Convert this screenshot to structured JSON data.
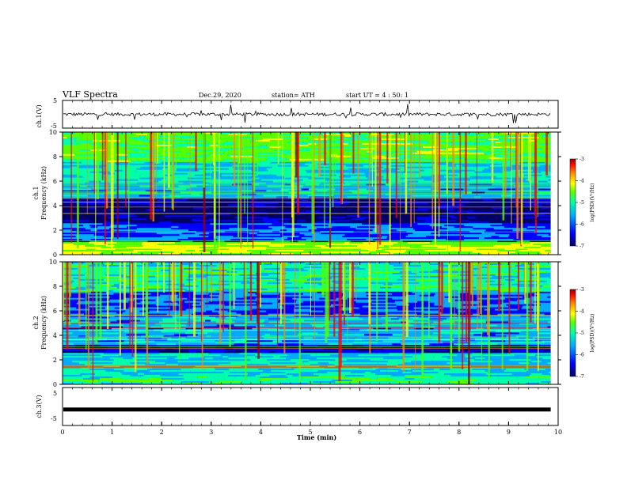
{
  "header": {
    "title": "VLF Spectra",
    "date": "Dec.29, 2020",
    "station": "station= ATH",
    "start": "start UT =  4 : 50: 1"
  },
  "chart_data": [
    {
      "type": "line",
      "name": "ch1-waveform",
      "ylabel": "ch.1(V)",
      "ylim": [
        -5,
        5
      ],
      "yticks": [
        "5",
        "-5"
      ],
      "xlim": [
        0,
        10
      ],
      "baseline_v": 0,
      "data_end_min": 9.85
    },
    {
      "type": "heatmap",
      "name": "ch1-spectrogram",
      "ylabel": "ch.1\nFrequency (kHz)",
      "ylim": [
        0,
        10
      ],
      "yticks": [
        "0",
        "2",
        "4",
        "6",
        "8",
        "10"
      ],
      "xlim": [
        0,
        10
      ],
      "colorbar": {
        "label": "log(PSD)(V²/Hz)",
        "range": [
          -7,
          -3
        ],
        "ticks": [
          "-3",
          "-4",
          "-5",
          "-6",
          "-7"
        ]
      }
    },
    {
      "type": "heatmap",
      "name": "ch2-spectrogram",
      "ylabel": "ch.2\nFrequency (kHz)",
      "ylim": [
        0,
        10
      ],
      "yticks": [
        "0",
        "2",
        "4",
        "6",
        "8",
        "10"
      ],
      "xlim": [
        0,
        10
      ],
      "colorbar": {
        "label": "log(PSD)(V²/Hz)",
        "range": [
          -7,
          -3
        ],
        "ticks": [
          "-3",
          "-4",
          "-5",
          "-6",
          "-7"
        ]
      }
    },
    {
      "type": "line",
      "name": "ch3-waveform",
      "ylabel": "ch.3(V)",
      "ylim": [
        -5,
        5
      ],
      "yticks": [
        "5",
        "-5"
      ],
      "xlim": [
        0,
        10
      ],
      "baseline_v": -0.8,
      "data_end_min": 9.85
    }
  ],
  "xaxis": {
    "label": "Time (min)",
    "ticks": [
      "0",
      "1",
      "2",
      "3",
      "4",
      "5",
      "6",
      "7",
      "8",
      "9",
      "10"
    ]
  },
  "colormap": [
    "#000066",
    "#0000ff",
    "#00aaff",
    "#00ffaa",
    "#55ff00",
    "#ffff00",
    "#ff8800",
    "#ff0000",
    "#990000"
  ]
}
